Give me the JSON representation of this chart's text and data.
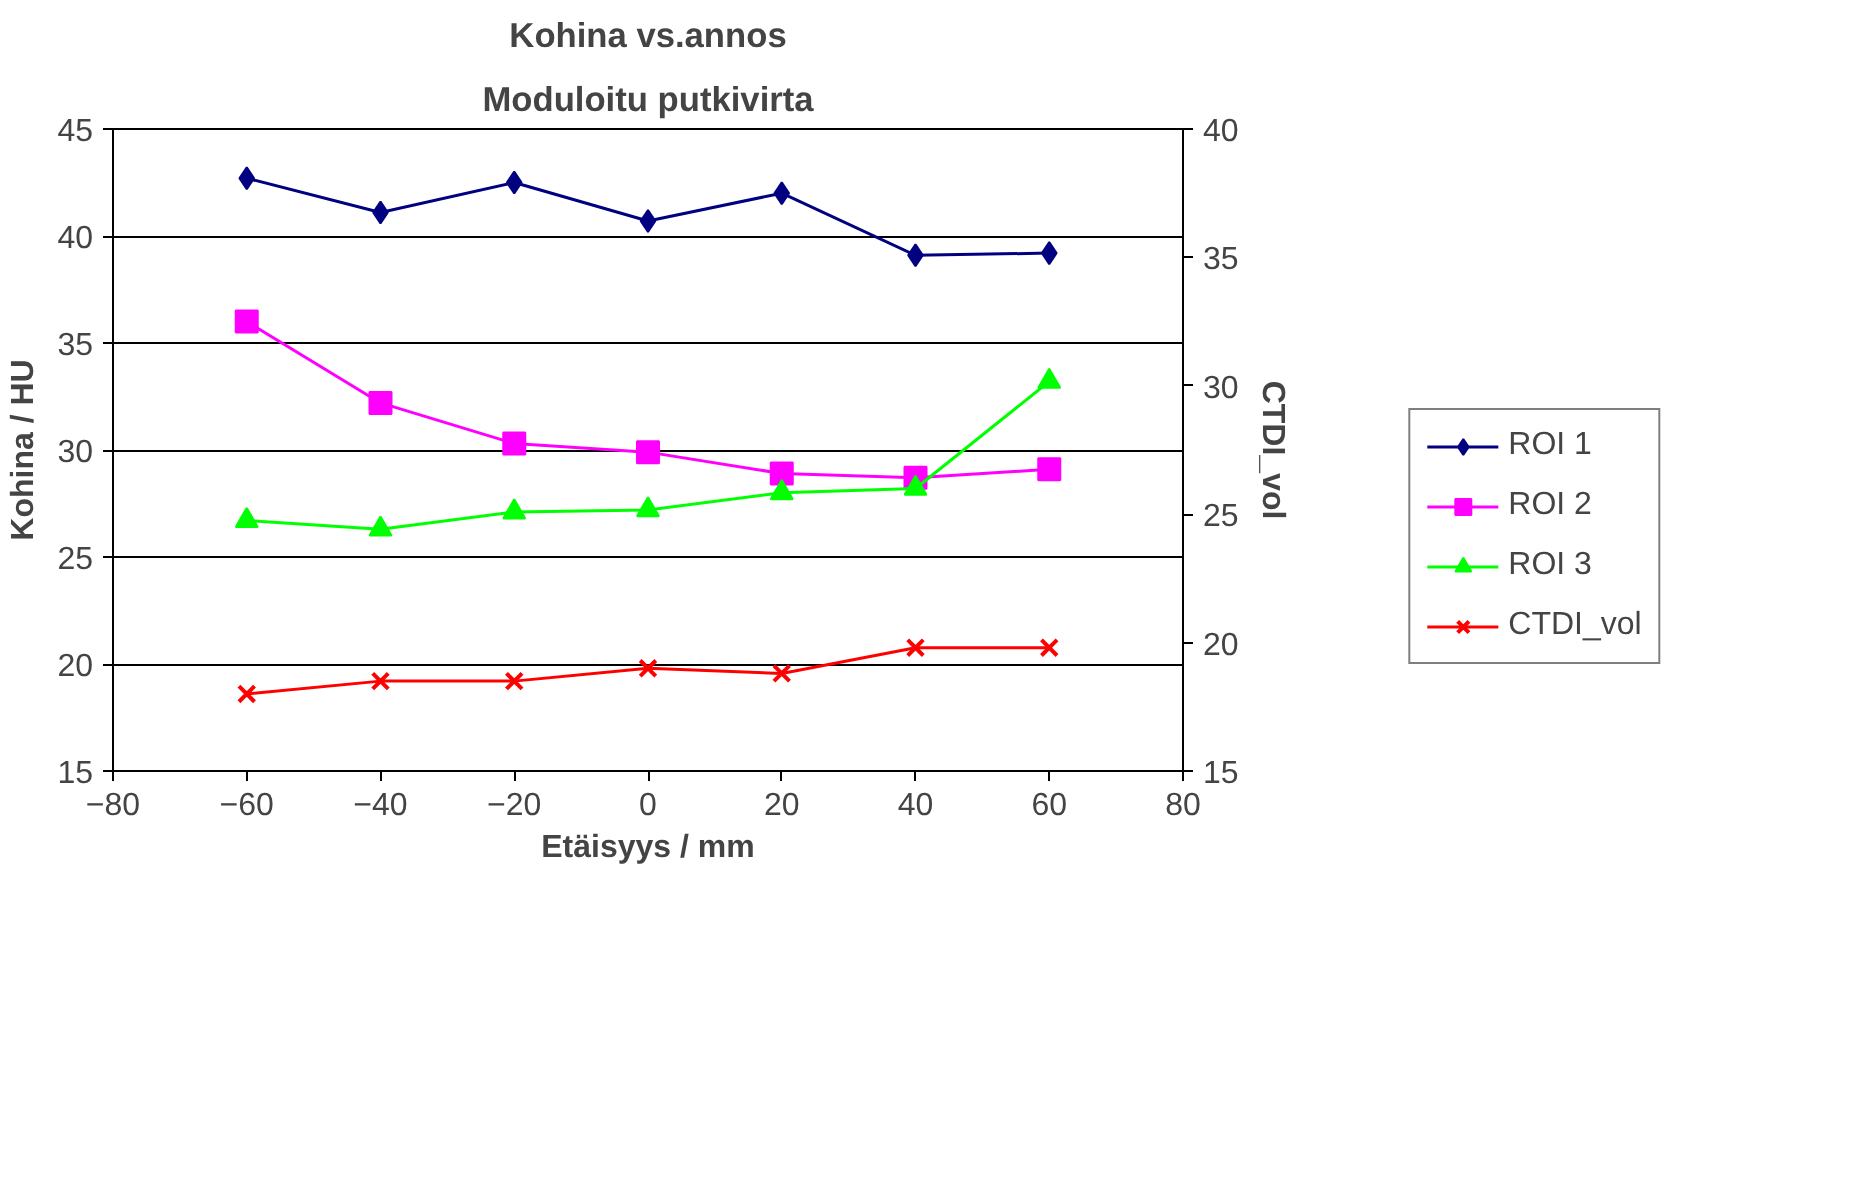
{
  "chart_data": {
    "type": "line",
    "title": "Kohina vs.annos",
    "subtitle": "Moduloitu putkivirta",
    "xlabel": "Etäisyys / mm",
    "ylabel": "Kohina / HU",
    "y2label": "CTDI_vol",
    "x": [
      -60,
      -40,
      -20,
      0,
      20,
      40,
      60
    ],
    "series": [
      {
        "name": "ROI 1",
        "color": "#000080",
        "marker": "diamond",
        "values": [
          42.7,
          41.1,
          42.5,
          40.7,
          42.0,
          39.1,
          39.2
        ]
      },
      {
        "name": "ROI 2",
        "color": "#ff00ff",
        "marker": "square",
        "values": [
          36.0,
          32.2,
          30.3,
          29.9,
          28.9,
          28.7,
          29.1
        ]
      },
      {
        "name": "ROI 3",
        "color": "#00ff00",
        "marker": "triangle",
        "values": [
          26.7,
          26.3,
          27.1,
          27.2,
          28.0,
          28.2,
          33.2
        ]
      },
      {
        "name": "CTDI_vol",
        "color": "#ff0000",
        "marker": "cross",
        "axis": "y2",
        "values": [
          18.0,
          18.5,
          18.5,
          19.0,
          18.8,
          19.8,
          19.8
        ]
      }
    ],
    "xlim": [
      -80,
      80
    ],
    "xticks": [
      -80,
      -60,
      -40,
      -20,
      0,
      20,
      40,
      60,
      80
    ],
    "ylim": [
      15,
      45
    ],
    "yticks": [
      15,
      20,
      25,
      30,
      35,
      40,
      45
    ],
    "y2lim": [
      15,
      40
    ],
    "y2ticks": [
      15,
      20,
      25,
      30,
      35,
      40
    ],
    "grid": "y",
    "legend": "right",
    "line_style": "solid"
  }
}
